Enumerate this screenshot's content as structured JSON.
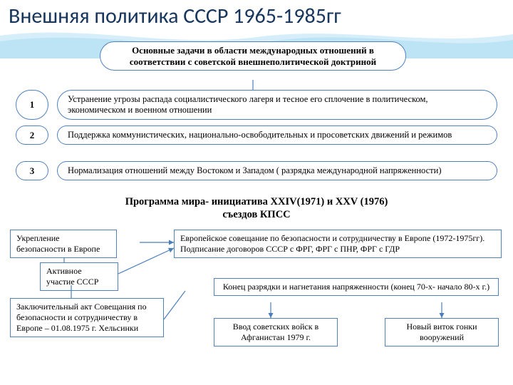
{
  "colors": {
    "title": "#17365d",
    "border": "#4f81bd",
    "wave1": "#b8e2f4",
    "wave2": "#d5eef9",
    "connector": "#4a7ebb"
  },
  "title": "Внешняя политика СССР 1965-1985гг",
  "subtitle": "Основные задачи в области международных отношений в соответствии с советской внешнеполитической доктриной",
  "tasks": [
    {
      "num": "1",
      "text": "Устранение угрозы распада социалистического лагеря и тесное его сплочение в политическом, экономическом и военном отношении"
    },
    {
      "num": "2",
      "text": "Поддержка коммунистических, национально-освободительных и просоветских движений и режимов"
    },
    {
      "num": "3",
      "text": "Нормализация отношений между Востоком и Западом ( разрядка международной напряженности)"
    }
  ],
  "program_title": "Программа мира- инициатива XXIV(1971) и XXV (1976) съездов КПСС",
  "boxes": {
    "europe_security": "Укрепление безопасности в Европе",
    "active_ussr": "Активное участие СССР",
    "helsinki": "Заключительный акт Совещания по безопасности и сотрудничеству в Европе – 01.08.1975 г. Хельсинки",
    "csce": "Европейское совещание по безопасности и сотрудничеству в Европе (1972-1975гг).\nПодписание договоров СССР с ФРГ, ФРГ с ПНР, ФРГ с ГДР",
    "end_detente": "Конец разрядки и нагнетания напряженности (конец 70-х- начало 80-х г.)",
    "afghanistan": "Ввод советских войск в Афганистан 1979 г.",
    "arms_race": "Новый виток гонки вооружений"
  }
}
